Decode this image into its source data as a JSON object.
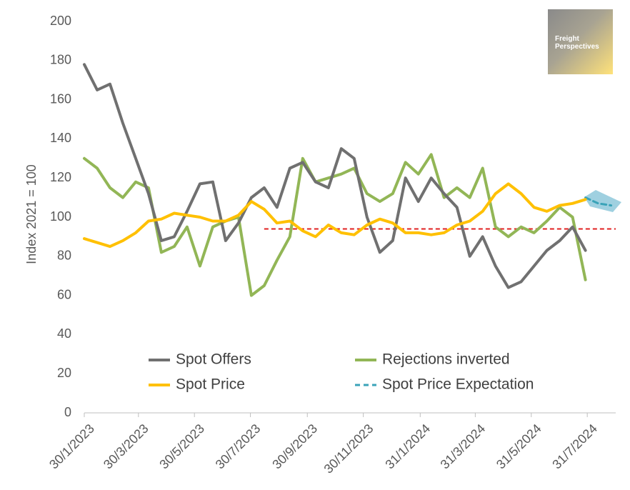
{
  "chart_data": {
    "type": "line",
    "y_label": "Index 2021 = 100",
    "x": [
      "30/1/2023",
      "13/2/2023",
      "27/2/2023",
      "13/3/2023",
      "27/3/2023",
      "10/4/2023",
      "24/4/2023",
      "8/5/2023",
      "22/5/2023",
      "5/6/2023",
      "19/6/2023",
      "3/7/2023",
      "17/7/2023",
      "31/7/2023",
      "14/8/2023",
      "28/8/2023",
      "11/9/2023",
      "25/9/2023",
      "9/10/2023",
      "23/10/2023",
      "6/11/2023",
      "20/11/2023",
      "4/12/2023",
      "18/12/2023",
      "1/1/2024",
      "15/1/2024",
      "29/1/2024",
      "12/2/2024",
      "26/2/2024",
      "11/3/2024",
      "25/3/2024",
      "8/4/2024",
      "22/4/2024",
      "6/5/2024",
      "20/5/2024",
      "3/6/2024",
      "17/6/2024",
      "1/7/2024",
      "15/7/2024",
      "29/7/2024",
      "12/8/2024",
      "26/8/2024"
    ],
    "series": [
      {
        "name": "Spot Offers",
        "color": "#707070",
        "dashed": false,
        "values": [
          178,
          165,
          168,
          148,
          130,
          112,
          88,
          90,
          103,
          117,
          118,
          88,
          97,
          110,
          115,
          105,
          125,
          128,
          118,
          115,
          135,
          130,
          100,
          82,
          88,
          120,
          108,
          120,
          112,
          105,
          80,
          90,
          75,
          64,
          67,
          75,
          83,
          88,
          95,
          83,
          null,
          null
        ]
      },
      {
        "name": "Rejections inverted",
        "color": "#92b656",
        "dashed": false,
        "values": [
          130,
          125,
          115,
          110,
          118,
          115,
          82,
          85,
          95,
          75,
          95,
          98,
          100,
          60,
          65,
          78,
          90,
          130,
          118,
          120,
          122,
          125,
          112,
          108,
          112,
          128,
          122,
          132,
          110,
          115,
          110,
          125,
          95,
          90,
          95,
          92,
          98,
          105,
          100,
          68,
          null,
          null
        ]
      },
      {
        "name": "Spot Price",
        "color": "#ffc000",
        "dashed": false,
        "values": [
          89,
          87,
          85,
          88,
          92,
          98,
          99,
          102,
          101,
          100,
          98,
          98,
          101,
          108,
          104,
          97,
          98,
          93,
          90,
          96,
          92,
          91,
          96,
          99,
          97,
          92,
          92,
          91,
          92,
          96,
          98,
          103,
          112,
          117,
          112,
          105,
          103,
          106,
          107,
          109,
          null,
          null
        ]
      },
      {
        "name": "Spot Price Expectation",
        "color": "#3aa3b8",
        "dashed": true,
        "values": [
          null,
          null,
          null,
          null,
          null,
          null,
          null,
          null,
          null,
          null,
          null,
          null,
          null,
          null,
          null,
          null,
          null,
          null,
          null,
          null,
          null,
          null,
          null,
          null,
          null,
          null,
          null,
          null,
          null,
          null,
          null,
          null,
          null,
          null,
          null,
          null,
          null,
          null,
          null,
          110,
          107,
          106
        ]
      }
    ],
    "xlim": [
      "30/1/2023",
      "31/8/2024"
    ],
    "xticks": [
      "30/1/2023",
      "30/3/2023",
      "30/5/2023",
      "30/7/2023",
      "30/9/2023",
      "30/11/2023",
      "31/1/2024",
      "31/3/2024",
      "31/5/2024",
      "31/7/2024"
    ],
    "ylim": [
      0,
      200
    ],
    "yticks": [
      0,
      20,
      40,
      60,
      80,
      100,
      120,
      140,
      160,
      180,
      200
    ],
    "grid": false,
    "legend": "bottom",
    "reference_line": {
      "value": 94,
      "from": "14/8/2023",
      "color": "#e02020"
    },
    "logo": [
      "Freight",
      "Perspectives"
    ]
  }
}
